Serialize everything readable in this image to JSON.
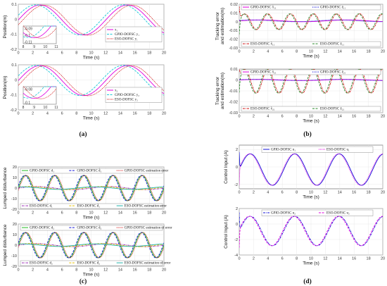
{
  "figure": {
    "panel_tags": [
      "(a)",
      "(b)",
      "(c)",
      "(d)"
    ]
  },
  "colors": {
    "magenta": "#e000e0",
    "cyan": "#19c8d8",
    "red": "#d01010",
    "blue": "#1414d8",
    "green": "#22bb22",
    "darkgreen": "#2e8b2e",
    "purple": "#9a2ab8",
    "yellow": "#e6c000",
    "teal": "#20b2aa"
  },
  "chart_data": [
    {
      "type": "line",
      "ylabel": "Position(m)",
      "xlabel": "Time (s)",
      "xlim": [
        0,
        20
      ],
      "ylim": [
        -0.2,
        0.1
      ],
      "xticks": [
        "0",
        "2",
        "4",
        "6",
        "8",
        "10",
        "12",
        "14",
        "16",
        "18",
        "20"
      ],
      "yticks": [
        "0.1",
        "0",
        "-0.1",
        "-0.2"
      ],
      "series": [
        {
          "name": "x₁",
          "color": "magenta",
          "style": "solid",
          "amp": 0.1,
          "period": 12,
          "phase": 0,
          "offset": -0.005
        },
        {
          "name": "GPIO-DOFSC y₁",
          "color": "cyan",
          "style": "dashed",
          "amp": 0.1,
          "period": 12,
          "phase": 0.05,
          "offset": -0.004
        },
        {
          "name": "ESO-DOFSC y₁",
          "color": "red",
          "style": "dotted",
          "amp": 0.1,
          "period": 12,
          "phase": -0.05,
          "offset": -0.006
        }
      ],
      "inset": {
        "xticks": [
          "8",
          "9",
          "10",
          "11"
        ],
        "yticks": [
          "-0.09",
          "-0.1",
          "-0.11"
        ]
      }
    },
    {
      "type": "line",
      "ylabel": "Position(m)",
      "xlabel": "Time (s)",
      "xlim": [
        0,
        20
      ],
      "ylim": [
        -0.2,
        0.1
      ],
      "xticks": [
        "0",
        "2",
        "4",
        "6",
        "8",
        "10",
        "12",
        "14",
        "16",
        "18",
        "20"
      ],
      "yticks": [
        "0.1",
        "0",
        "-0.1",
        "-0.2"
      ],
      "series": [
        {
          "name": "x₂",
          "color": "magenta",
          "style": "solid",
          "amp": 0.1,
          "period": 12,
          "phase": 0,
          "offset": -0.005
        },
        {
          "name": "GPIO-DOFSC y₂",
          "color": "cyan",
          "style": "dashed",
          "amp": 0.1,
          "period": 12,
          "phase": 0.05,
          "offset": -0.004
        },
        {
          "name": "ESO-DOFSC y₂",
          "color": "red",
          "style": "dotted",
          "amp": 0.1,
          "period": 12,
          "phase": -0.05,
          "offset": -0.006
        }
      ],
      "inset": {
        "xticks": [
          "8",
          "9",
          "10",
          "11"
        ],
        "yticks": [
          "-0.08",
          "-0.1"
        ]
      }
    },
    {
      "type": "line",
      "ylabel": "Tracking error\nand estimation(m)",
      "xlabel": "Time (s)",
      "xlim": [
        0,
        20
      ],
      "ylim": [
        -0.03,
        0.02
      ],
      "xticks": [
        "0",
        "2",
        "4",
        "6",
        "8",
        "10",
        "12",
        "14",
        "16",
        "18",
        "20"
      ],
      "yticks": [
        "0.02",
        "0.01",
        "0",
        "-0.01",
        "-0.02",
        "-0.03"
      ],
      "series": [
        {
          "name": "GPIO-DOFSC x̃₁₁",
          "color": "magenta",
          "style": "solid",
          "amp": 0.001,
          "period": 12,
          "phase": 0,
          "offset": 0.001
        },
        {
          "name": "GPIO-DOFSC ẑ₁₁",
          "color": "blue",
          "style": "dotted",
          "amp": 0.001,
          "period": 12,
          "phase": 0.1,
          "offset": 0.001
        },
        {
          "name": "ESO-DOFSC x̃₁₁",
          "color": "red",
          "style": "dashdot",
          "amp": 0.009,
          "period": 3.2,
          "phase": 0,
          "offset": 0.0
        },
        {
          "name": "ESO-DOFSC ẑ₁₁",
          "color": "darkgreen",
          "style": "dashed",
          "amp": 0.009,
          "period": 3.2,
          "phase": 0.05,
          "offset": 0.0
        }
      ]
    },
    {
      "type": "line",
      "ylabel": "Tracking error\nand estimation(m)",
      "xlabel": "Time (s)",
      "xlim": [
        0,
        20
      ],
      "ylim": [
        -0.03,
        0.01
      ],
      "xticks": [
        "0",
        "2",
        "4",
        "6",
        "8",
        "10",
        "12",
        "14",
        "16",
        "18",
        "20"
      ],
      "yticks": [
        "0.01",
        "0",
        "-0.01",
        "-0.02",
        "-0.03"
      ],
      "series": [
        {
          "name": "GPIO-DOFSC x̃₂₁",
          "color": "magenta",
          "style": "solid",
          "amp": 0.0005,
          "period": 12,
          "phase": 0,
          "offset": 0.0
        },
        {
          "name": "GPIO-DOFSC ẑ₂₁",
          "color": "blue",
          "style": "dotted",
          "amp": 0.0005,
          "period": 12,
          "phase": 0.1,
          "offset": 0.0
        },
        {
          "name": "ESO-DOFSC x̃₂₁",
          "color": "red",
          "style": "dashdot",
          "amp": 0.011,
          "period": 3.2,
          "phase": 0,
          "offset": -0.001
        },
        {
          "name": "ESO-DOFSC ẑ₂₁",
          "color": "darkgreen",
          "style": "dashed",
          "amp": 0.011,
          "period": 3.2,
          "phase": 0.05,
          "offset": -0.001
        }
      ]
    },
    {
      "type": "line",
      "ylabel": "Lumped disturbance",
      "xlabel": "Time (s)",
      "xlim": [
        0,
        20
      ],
      "ylim": [
        -20,
        20
      ],
      "xticks": [
        "0",
        "2",
        "4",
        "6",
        "8",
        "10",
        "12",
        "14",
        "16",
        "18",
        "20"
      ],
      "yticks": [
        "20",
        "10",
        "0",
        "-10",
        "-20"
      ],
      "series": [
        {
          "name": "GPIO-DOFSC d₁",
          "color": "green",
          "style": "solid",
          "amp": 12,
          "period": 4,
          "phase": 0,
          "offset": 0
        },
        {
          "name": "GPIO-DOFSC d̂₁",
          "color": "blue",
          "style": "dashed",
          "amp": 12,
          "period": 4,
          "phase": 0.03,
          "offset": 0
        },
        {
          "name": "GPIO-DOFSC estimation error",
          "color": "red",
          "style": "dotted",
          "amp": 12,
          "period": 4,
          "phase": -0.03,
          "offset": 0
        },
        {
          "name": "ESO-DOFSC d₁",
          "color": "purple",
          "style": "dashdot",
          "amp": 1.5,
          "period": 10,
          "phase": 0,
          "offset": 0
        },
        {
          "name": "ESO-DOFSC d̂₁",
          "color": "yellow",
          "style": "dashed",
          "amp": 1.5,
          "period": 10,
          "phase": 0.1,
          "offset": 0
        },
        {
          "name": "ESO-DOFSC estimation error",
          "color": "teal",
          "style": "solid",
          "amp": 1.2,
          "period": 10,
          "phase": 0.2,
          "offset": 0
        }
      ]
    },
    {
      "type": "line",
      "ylabel": "Lumped disturbance",
      "xlabel": "Time (s)",
      "xlim": [
        0,
        20
      ],
      "ylim": [
        -20,
        20
      ],
      "xticks": [
        "0",
        "2",
        "4",
        "6",
        "8",
        "10",
        "12",
        "14",
        "16",
        "18",
        "20"
      ],
      "yticks": [
        "20",
        "10",
        "0",
        "-10",
        "-20"
      ],
      "series": [
        {
          "name": "GPIO-DOFSC d₂",
          "color": "green",
          "style": "solid",
          "amp": 12,
          "period": 4,
          "phase": 0,
          "offset": 0
        },
        {
          "name": "GPIO-DOFSC d̂₂",
          "color": "blue",
          "style": "dashed",
          "amp": 12,
          "period": 4,
          "phase": 0.03,
          "offset": 0
        },
        {
          "name": "GPIO-DOFSC estimation of error",
          "color": "red",
          "style": "dotted",
          "amp": 12,
          "period": 4,
          "phase": -0.03,
          "offset": 0
        },
        {
          "name": "ESO-DOFSC d₂",
          "color": "purple",
          "style": "dashdot",
          "amp": 1.5,
          "period": 10,
          "phase": 0,
          "offset": 0
        },
        {
          "name": "ESO-DOFSC d̂₂",
          "color": "yellow",
          "style": "dashed",
          "amp": 1.5,
          "period": 10,
          "phase": 0.1,
          "offset": 0
        },
        {
          "name": "ESO-DOFSC estimation of error",
          "color": "teal",
          "style": "solid",
          "amp": 1.2,
          "period": 10,
          "phase": 0.2,
          "offset": 0
        }
      ]
    },
    {
      "type": "line",
      "ylabel": "Control Input (A)",
      "xlabel": "Time (s)",
      "xlim": [
        0,
        20
      ],
      "ylim": [
        -2.5,
        2.5
      ],
      "xticks": [
        "0",
        "2",
        "4",
        "6",
        "8",
        "10",
        "12",
        "14",
        "16",
        "18",
        "20"
      ],
      "yticks": [
        "2",
        "0",
        "-2"
      ],
      "series": [
        {
          "name": "GPIO-DOFSC u₁",
          "color": "blue",
          "style": "solid",
          "amp": 1.8,
          "period": 6.2,
          "phase": 0,
          "offset": -0.3
        },
        {
          "name": "ESO-DOFSC u₁",
          "color": "magenta",
          "style": "dotted",
          "amp": 1.8,
          "period": 6.2,
          "phase": 0.02,
          "offset": -0.3
        }
      ]
    },
    {
      "type": "line",
      "ylabel": "Control Input (A)",
      "xlabel": "Time (s)",
      "xlim": [
        0,
        20
      ],
      "ylim": [
        -4,
        2
      ],
      "xticks": [
        "0",
        "2",
        "4",
        "6",
        "8",
        "10",
        "12",
        "14",
        "16",
        "18",
        "20"
      ],
      "yticks": [
        "2",
        "0",
        "-2",
        "-4"
      ],
      "series": [
        {
          "name": "GPIO-DOFSC u₂",
          "color": "blue",
          "style": "dashdot",
          "amp": 1.9,
          "period": 6.2,
          "phase": 0,
          "offset": -0.9
        },
        {
          "name": "ESO-DOFSC u₂",
          "color": "magenta",
          "style": "dashed",
          "amp": 1.9,
          "period": 6.2,
          "phase": 0.02,
          "offset": -0.9
        }
      ]
    }
  ]
}
